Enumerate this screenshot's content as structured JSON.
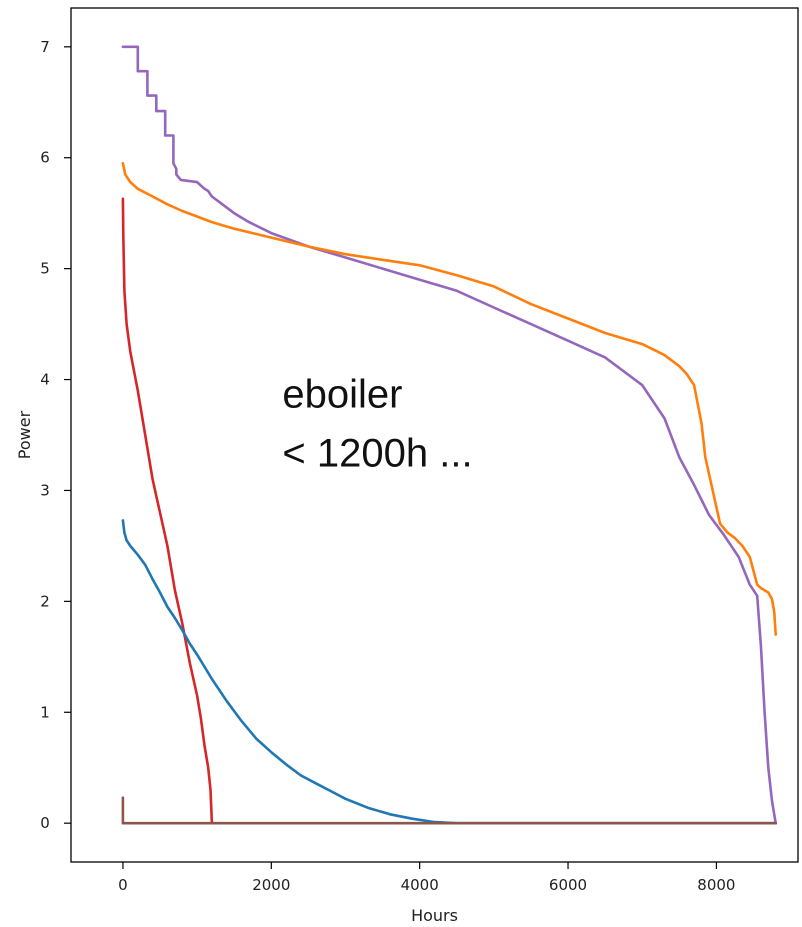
{
  "chart_data": {
    "type": "line",
    "title": "",
    "xlabel": "Hours",
    "ylabel": "Power",
    "xlim": [
      -700,
      9100
    ],
    "ylim": [
      -0.35,
      7.35
    ],
    "xticks": [
      0,
      2000,
      4000,
      6000,
      8000
    ],
    "yticks": [
      0,
      1,
      2,
      3,
      4,
      5,
      6,
      7
    ],
    "grid": false,
    "legend": "none",
    "annotation": {
      "lines": [
        "eboiler",
        "< 1200h ..."
      ],
      "x": 2150,
      "y": 3.75
    },
    "series": [
      {
        "color": "#9467bd",
        "x": [
          0,
          200,
          200,
          330,
          330,
          450,
          450,
          570,
          570,
          680,
          680,
          720,
          720,
          780,
          780,
          1000,
          1000,
          1100,
          1100,
          1150,
          1200,
          1300,
          1500,
          1700,
          2000,
          2500,
          3000,
          3500,
          4000,
          4500,
          5000,
          5500,
          6000,
          6500,
          7000,
          7300,
          7500,
          7700,
          7900,
          8100,
          8300,
          8450,
          8550,
          8600,
          8650,
          8700,
          8750,
          8800
        ],
        "y": [
          7.0,
          7.0,
          6.78,
          6.78,
          6.56,
          6.56,
          6.42,
          6.42,
          6.2,
          6.2,
          5.95,
          5.9,
          5.85,
          5.8,
          5.8,
          5.78,
          5.78,
          5.72,
          5.72,
          5.7,
          5.65,
          5.6,
          5.5,
          5.42,
          5.32,
          5.2,
          5.1,
          5.0,
          4.9,
          4.8,
          4.65,
          4.5,
          4.35,
          4.2,
          3.95,
          3.65,
          3.3,
          3.05,
          2.78,
          2.6,
          2.4,
          2.15,
          2.05,
          1.6,
          1.0,
          0.5,
          0.2,
          0.0
        ]
      },
      {
        "color": "#ff7f0e",
        "x": [
          0,
          30,
          100,
          200,
          400,
          600,
          800,
          1000,
          1200,
          1500,
          2000,
          2500,
          3000,
          3500,
          4000,
          4500,
          5000,
          5500,
          6000,
          6500,
          7000,
          7300,
          7500,
          7600,
          7700,
          7800,
          7850,
          7950,
          8050,
          8150,
          8250,
          8350,
          8450,
          8550,
          8600,
          8700,
          8750,
          8780,
          8800
        ],
        "y": [
          5.95,
          5.85,
          5.78,
          5.72,
          5.65,
          5.58,
          5.52,
          5.47,
          5.42,
          5.36,
          5.28,
          5.2,
          5.13,
          5.08,
          5.03,
          4.94,
          4.84,
          4.68,
          4.55,
          4.42,
          4.32,
          4.22,
          4.12,
          4.05,
          3.95,
          3.6,
          3.3,
          3.0,
          2.7,
          2.62,
          2.57,
          2.5,
          2.4,
          2.15,
          2.12,
          2.08,
          2.02,
          1.9,
          1.7
        ]
      },
      {
        "color": "#d62728",
        "x": [
          0,
          5,
          20,
          50,
          100,
          200,
          300,
          400,
          500,
          600,
          700,
          800,
          900,
          1000,
          1050,
          1100,
          1150,
          1180,
          1200
        ],
        "y": [
          5.63,
          5.3,
          4.8,
          4.5,
          4.25,
          3.9,
          3.5,
          3.1,
          2.8,
          2.5,
          2.1,
          1.8,
          1.45,
          1.15,
          0.95,
          0.7,
          0.5,
          0.3,
          0.0
        ]
      },
      {
        "color": "#1f77b4",
        "x": [
          0,
          20,
          50,
          100,
          200,
          300,
          400,
          500,
          600,
          700,
          800,
          900,
          1000,
          1200,
          1400,
          1600,
          1800,
          2000,
          2200,
          2400,
          2600,
          2800,
          3000,
          3300,
          3600,
          3900,
          4200,
          4500,
          4800,
          5000,
          8800
        ],
        "y": [
          2.73,
          2.62,
          2.55,
          2.5,
          2.42,
          2.33,
          2.2,
          2.08,
          1.95,
          1.85,
          1.74,
          1.62,
          1.52,
          1.3,
          1.1,
          0.92,
          0.76,
          0.64,
          0.53,
          0.43,
          0.36,
          0.29,
          0.22,
          0.14,
          0.08,
          0.04,
          0.01,
          0.0,
          0.0,
          0.0,
          0.0
        ]
      },
      {
        "color": "#8c564b",
        "x": [
          0,
          0,
          0,
          8800
        ],
        "y": [
          0.23,
          0.0,
          0.0,
          0.0
        ]
      }
    ]
  }
}
